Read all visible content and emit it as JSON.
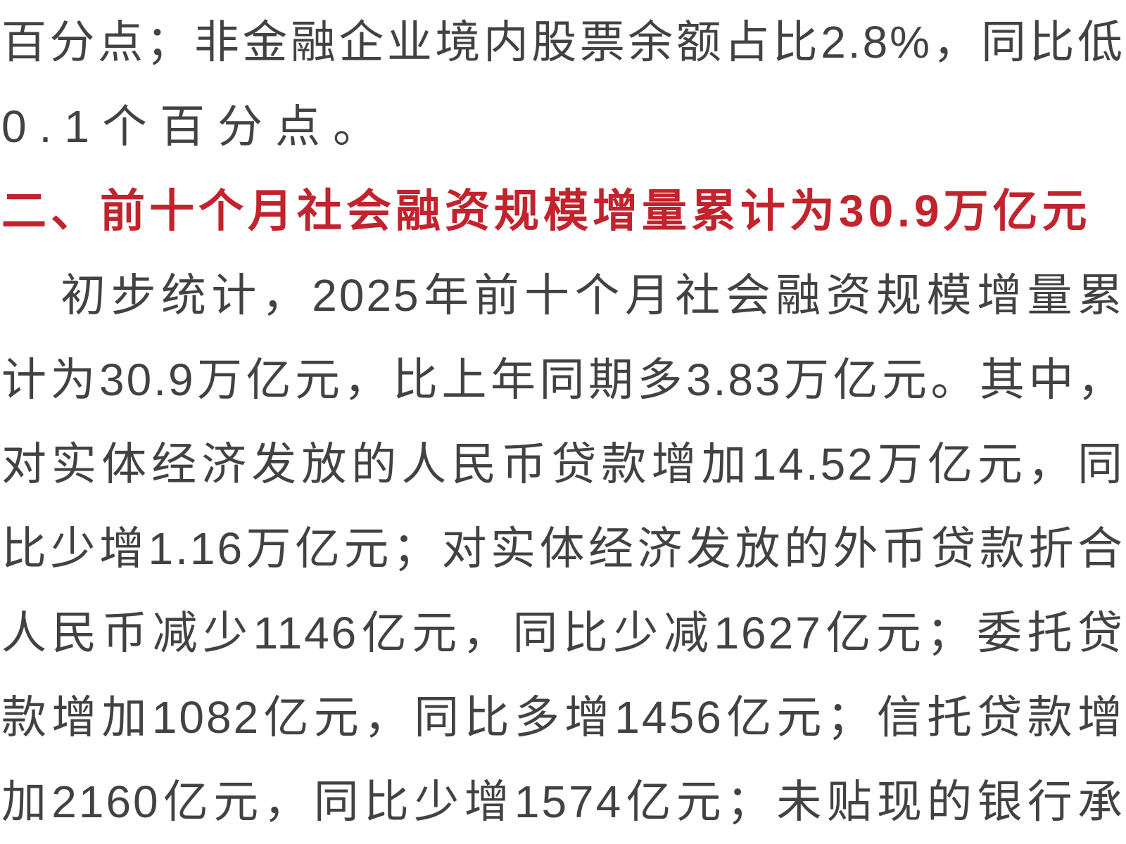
{
  "page": {
    "background_color": "#ffffff",
    "body_text_color": "#424242",
    "heading_color": "#c2232d"
  },
  "document": {
    "intro_fragment": {
      "full_text": "百分点；非金融企业境内股票余额占比2.8%，同比低0.1个百分点。",
      "lines": [
        "百分点；非金融企业境内股票余额占比2.8%，同比低",
        "0.1个百分点。"
      ]
    },
    "section_heading": {
      "text": "二、前十个月社会融资规模增量累计为30.9万亿元"
    },
    "body_paragraph": {
      "full_text": "初步统计，2025年前十个月社会融资规模增量累计为30.9万亿元，比上年同期多3.83万亿元。其中，对实体经济发放的人民币贷款增加14.52万亿元，同比少增1.16万亿元；对实体经济发放的外币贷款折合人民币减少1146亿元，同比少减1627亿元；委托贷款增加1082亿元，同比多增1456亿元；信托贷款增加2160亿元，同比少增1574亿元；未贴现的银行承",
      "lines": [
        "初步统计，2025年前十个月社会融资规模增量累",
        "计为30.9万亿元，比上年同期多3.83万亿元。其中，",
        "对实体经济发放的人民币贷款增加14.52万亿元，同",
        "比少增1.16万亿元；对实体经济发放的外币贷款折合",
        "人民币减少1146亿元，同比少减1627亿元；委托贷",
        "款增加1082亿元，同比多增1456亿元；信托贷款增",
        "加2160亿元，同比少增1574亿元；未贴现的银行承"
      ]
    }
  }
}
